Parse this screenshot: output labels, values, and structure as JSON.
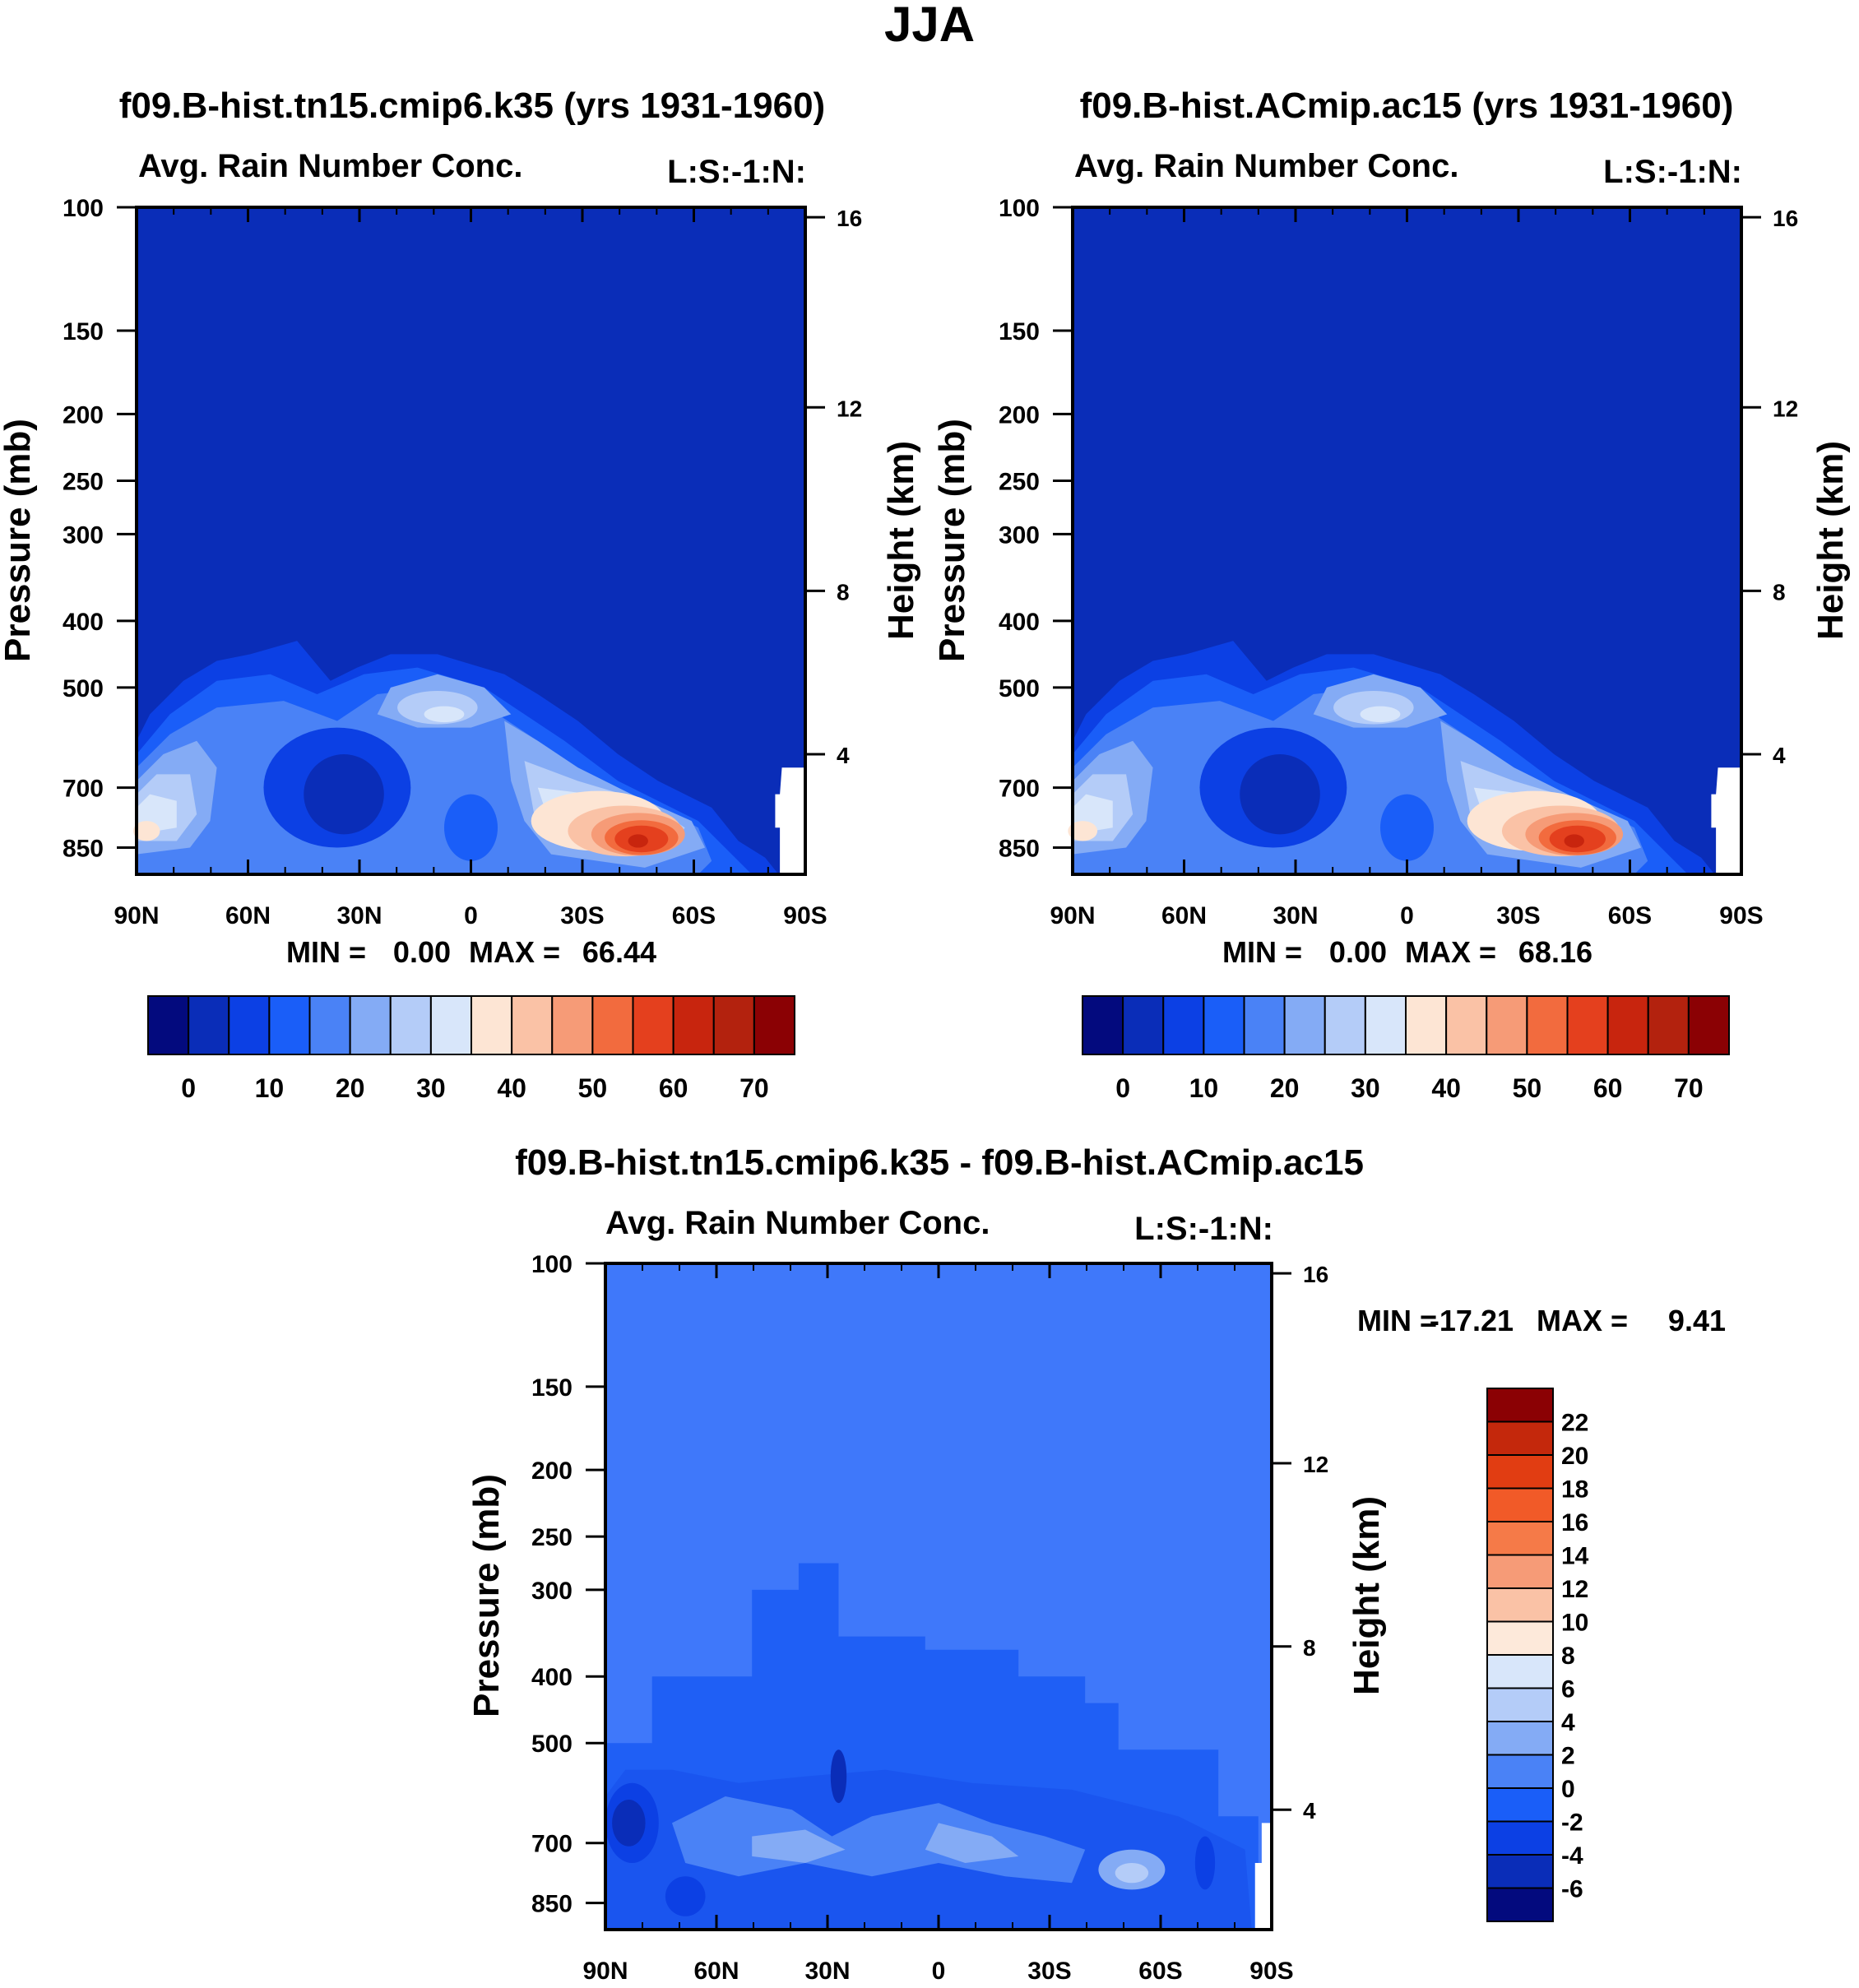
{
  "page_title": "JJA",
  "chart_data": [
    {
      "type": "heatmap",
      "title": "f09.B-hist.tn15.cmip6.k35 (yrs 1931-1960)",
      "subtitle_left": "Avg. Rain Number Conc.",
      "subtitle_right": "L:S:-1:N:",
      "ylabel": "Pressure (mb)",
      "ylabel_right": "Height (km)",
      "x_ticks": [
        "90N",
        "60N",
        "30N",
        "0",
        "30S",
        "60S",
        "90S"
      ],
      "y_ticks": [
        "100",
        "150",
        "200",
        "250",
        "300",
        "400",
        "500",
        "700",
        "850"
      ],
      "y_ticks_right": [
        "16",
        "12",
        "8",
        "4"
      ],
      "stats": {
        "min_label": "MIN =",
        "min": "0.00",
        "max_label": "MAX =",
        "max": "66.44"
      },
      "colorbar": {
        "orientation": "horizontal",
        "labels": [
          "0",
          "10",
          "20",
          "30",
          "40",
          "50",
          "60",
          "70"
        ]
      }
    },
    {
      "type": "heatmap",
      "title": "f09.B-hist.ACmip.ac15 (yrs 1931-1960)",
      "subtitle_left": "Avg. Rain Number Conc.",
      "subtitle_right": "L:S:-1:N:",
      "ylabel": "Pressure (mb)",
      "ylabel_right": "Height (km)",
      "x_ticks": [
        "90N",
        "60N",
        "30N",
        "0",
        "30S",
        "60S",
        "90S"
      ],
      "y_ticks": [
        "100",
        "150",
        "200",
        "250",
        "300",
        "400",
        "500",
        "700",
        "850"
      ],
      "y_ticks_right": [
        "16",
        "12",
        "8",
        "4"
      ],
      "stats": {
        "min_label": "MIN =",
        "min": "0.00",
        "max_label": "MAX =",
        "max": "68.16"
      },
      "colorbar": {
        "orientation": "horizontal",
        "labels": [
          "0",
          "10",
          "20",
          "30",
          "40",
          "50",
          "60",
          "70"
        ]
      }
    },
    {
      "type": "heatmap",
      "title": "f09.B-hist.tn15.cmip6.k35 - f09.B-hist.ACmip.ac15",
      "subtitle_left": "Avg. Rain Number Conc.",
      "subtitle_right": "L:S:-1:N:",
      "ylabel": "Pressure (mb)",
      "ylabel_right": "Height (km)",
      "x_ticks": [
        "90N",
        "60N",
        "30N",
        "0",
        "30S",
        "60S",
        "90S"
      ],
      "y_ticks": [
        "100",
        "150",
        "200",
        "250",
        "300",
        "400",
        "500",
        "700",
        "850"
      ],
      "y_ticks_right": [
        "16",
        "12",
        "8",
        "4"
      ],
      "stats": {
        "min_label": "MIN =",
        "min": "-17.21",
        "max_label": "MAX =",
        "max": "9.41"
      },
      "colorbar": {
        "orientation": "vertical",
        "labels": [
          "22",
          "20",
          "18",
          "16",
          "14",
          "12",
          "10",
          "8",
          "6",
          "4",
          "2",
          "0",
          "-2",
          "-4",
          "-6"
        ]
      }
    }
  ],
  "colors": {
    "background_blue": "#0a2db8",
    "diff_background": "#3f78fa",
    "bar15": [
      "#030a7e",
      "#0a2db8",
      "#0c40e4",
      "#1a5ef8",
      "#4a82f6",
      "#84abf5",
      "#b4ccf8",
      "#d8e6fa",
      "#fde5d4",
      "#fac2a6",
      "#f69b77",
      "#f26b3e",
      "#e4401e",
      "#c8250e",
      "#b3220e",
      "#8b0104"
    ],
    "vbar16": [
      "#030a7e",
      "#0a2db8",
      "#0c40e4",
      "#1a5ef8",
      "#4a82f6",
      "#84abf5",
      "#b4ccf8",
      "#d8e6fa",
      "#fde9da",
      "#fac2a6",
      "#f69b77",
      "#f57a48",
      "#f15a28",
      "#e13d12",
      "#c4280c",
      "#8b0104"
    ]
  }
}
